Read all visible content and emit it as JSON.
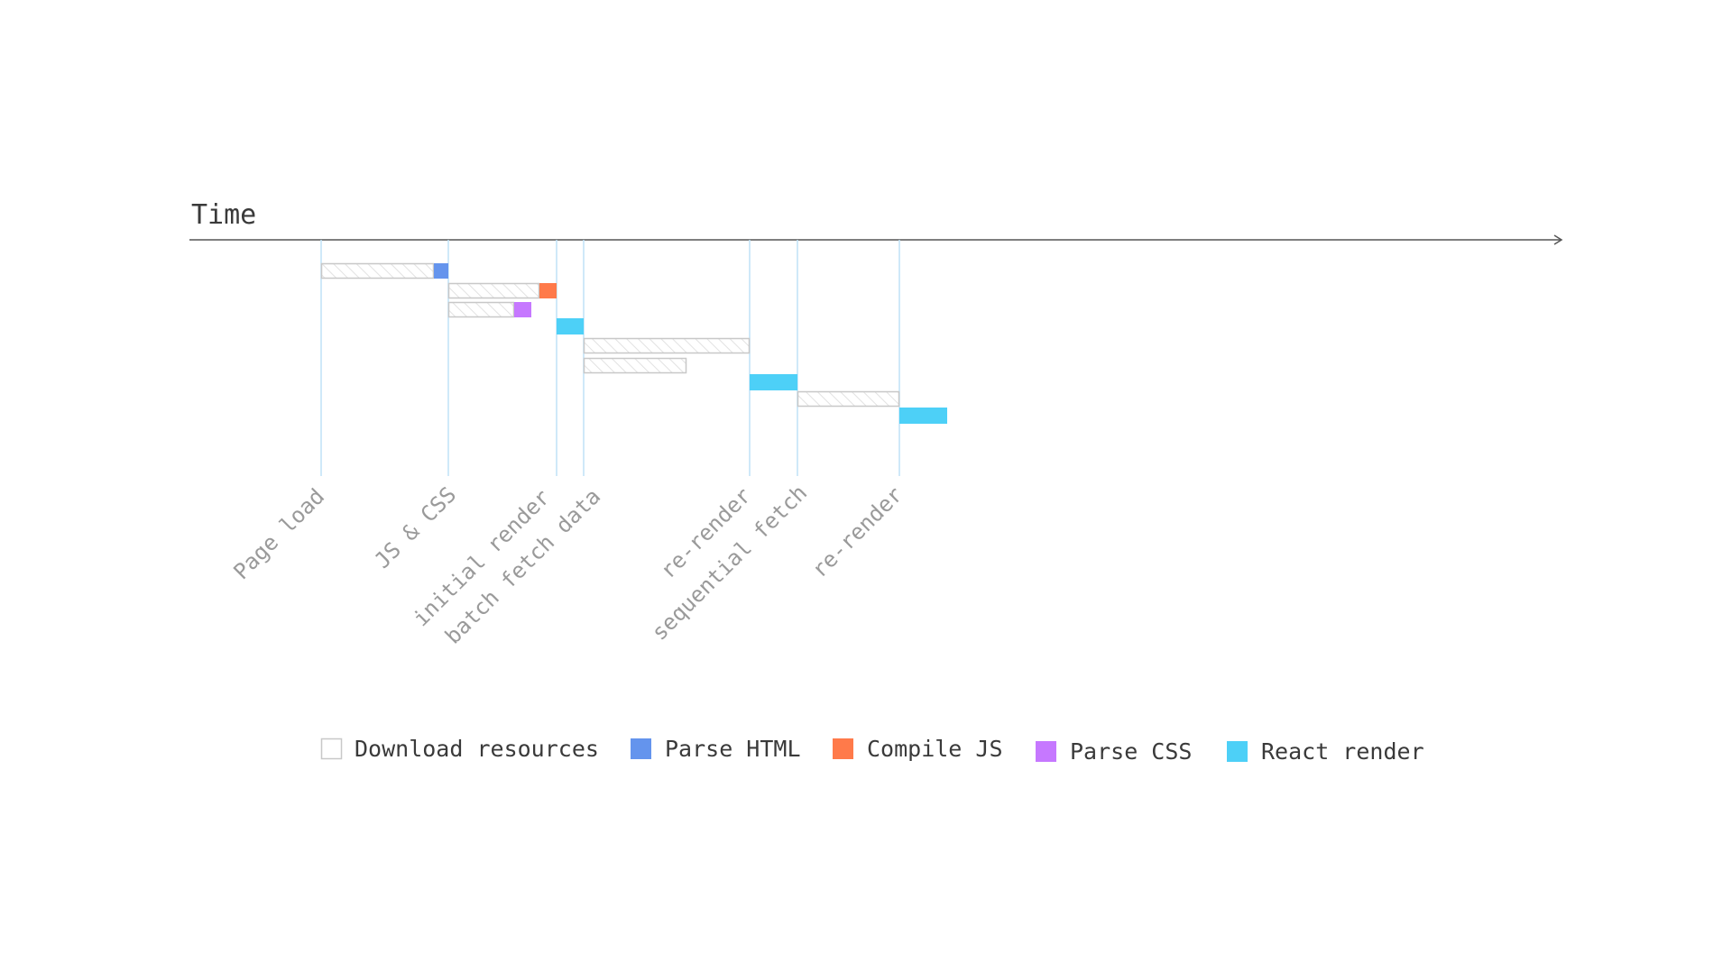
{
  "axis": {
    "label": "Time"
  },
  "milestones": [
    {
      "id": "page-load",
      "label": "Page load"
    },
    {
      "id": "js-css",
      "label": "JS & CSS"
    },
    {
      "id": "initial-render",
      "label": "initial render"
    },
    {
      "id": "batch-fetch-data",
      "label": "batch fetch data"
    },
    {
      "id": "re-render-1",
      "label": "re-render"
    },
    {
      "id": "sequential-fetch",
      "label": "sequential fetch"
    },
    {
      "id": "re-render-2",
      "label": "re-render"
    }
  ],
  "legend": [
    {
      "key": "download",
      "label": "Download resources",
      "color": "#ffffff",
      "border": "#c8c8c8"
    },
    {
      "key": "parse-html",
      "label": "Parse HTML",
      "color": "#6494ed"
    },
    {
      "key": "compile-js",
      "label": "Compile JS",
      "color": "#ff7a4a"
    },
    {
      "key": "parse-css",
      "label": "Parse CSS",
      "color": "#c678ff"
    },
    {
      "key": "react-render",
      "label": "React render",
      "color": "#4dd0f7"
    }
  ],
  "colors": {
    "gridline": "#bfe2f7",
    "axis": "#555555",
    "download_border": "#c8c8c8",
    "hatch": "#e0e0e0"
  }
}
